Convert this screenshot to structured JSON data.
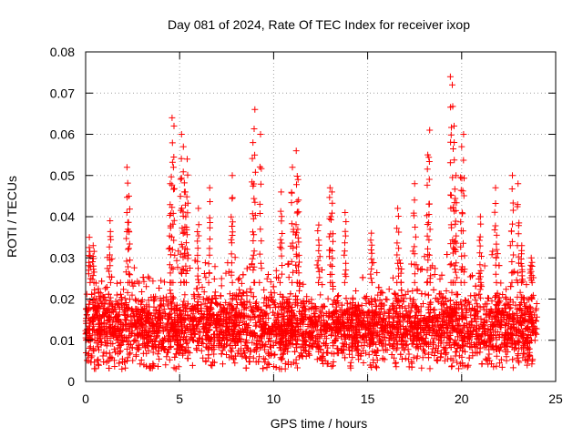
{
  "chart_data": {
    "type": "scatter",
    "title": "Day 081 of 2024, Rate Of TEC Index for receiver ixop",
    "xlabel": "GPS time / hours",
    "ylabel": "ROTI / TECUs",
    "xlim": [
      0,
      25
    ],
    "ylim": [
      0,
      0.08
    ],
    "x_ticks": [
      0,
      5,
      10,
      15,
      20,
      25
    ],
    "x_tick_labels": [
      "0",
      "5",
      "10",
      "15",
      "20",
      "25"
    ],
    "y_ticks": [
      0,
      0.01,
      0.02,
      0.03,
      0.04,
      0.05,
      0.06,
      0.07,
      0.08
    ],
    "y_tick_labels": [
      "0",
      "0.01",
      "0.02",
      "0.03",
      "0.04",
      "0.05",
      "0.06",
      "0.07",
      "0.08"
    ],
    "grid": true,
    "marker": "+",
    "marker_color": "#ff0000",
    "x_range_of_samples": [
      0,
      24
    ],
    "series": [
      {
        "name": "ROTI",
        "notable_points": [
          {
            "x": 0.2,
            "y": 0.035
          },
          {
            "x": 0.4,
            "y": 0.033
          },
          {
            "x": 1.3,
            "y": 0.039
          },
          {
            "x": 2.2,
            "y": 0.052
          },
          {
            "x": 2.3,
            "y": 0.045
          },
          {
            "x": 4.6,
            "y": 0.064
          },
          {
            "x": 4.7,
            "y": 0.062
          },
          {
            "x": 4.5,
            "y": 0.048
          },
          {
            "x": 5.1,
            "y": 0.06
          },
          {
            "x": 5.2,
            "y": 0.057
          },
          {
            "x": 5.4,
            "y": 0.054
          },
          {
            "x": 5.3,
            "y": 0.046
          },
          {
            "x": 6.0,
            "y": 0.042
          },
          {
            "x": 6.6,
            "y": 0.047
          },
          {
            "x": 7.8,
            "y": 0.05
          },
          {
            "x": 8.9,
            "y": 0.058
          },
          {
            "x": 9.0,
            "y": 0.066
          },
          {
            "x": 9.3,
            "y": 0.06
          },
          {
            "x": 10.4,
            "y": 0.046
          },
          {
            "x": 11.2,
            "y": 0.056
          },
          {
            "x": 11.0,
            "y": 0.052
          },
          {
            "x": 11.3,
            "y": 0.049
          },
          {
            "x": 12.4,
            "y": 0.038
          },
          {
            "x": 13.0,
            "y": 0.047
          },
          {
            "x": 13.1,
            "y": 0.046
          },
          {
            "x": 13.8,
            "y": 0.041
          },
          {
            "x": 15.2,
            "y": 0.036
          },
          {
            "x": 16.6,
            "y": 0.042
          },
          {
            "x": 17.5,
            "y": 0.048
          },
          {
            "x": 18.2,
            "y": 0.055
          },
          {
            "x": 18.3,
            "y": 0.061
          },
          {
            "x": 19.4,
            "y": 0.074
          },
          {
            "x": 19.5,
            "y": 0.072
          },
          {
            "x": 19.6,
            "y": 0.062
          },
          {
            "x": 19.7,
            "y": 0.05
          },
          {
            "x": 20.0,
            "y": 0.057
          },
          {
            "x": 20.1,
            "y": 0.06
          },
          {
            "x": 21.0,
            "y": 0.04
          },
          {
            "x": 21.8,
            "y": 0.047
          },
          {
            "x": 22.7,
            "y": 0.05
          },
          {
            "x": 23.0,
            "y": 0.048
          },
          {
            "x": 23.2,
            "y": 0.033
          },
          {
            "x": 23.7,
            "y": 0.03
          }
        ],
        "bulk_band_y": [
          0.005,
          0.022
        ],
        "minimum_y": 0.003
      }
    ]
  }
}
